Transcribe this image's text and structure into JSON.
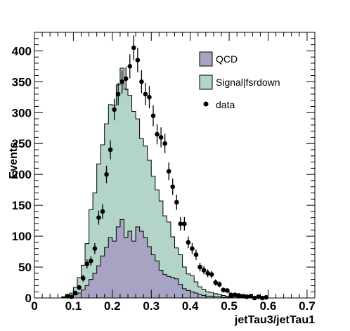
{
  "chart_data": {
    "type": "histogram",
    "title": "",
    "xlabel": "jetTau3/jetTau1",
    "ylabel": "Events",
    "xlim": [
      0,
      0.72
    ],
    "ylim": [
      0,
      430
    ],
    "x_ticks": [
      "0",
      "0.1",
      "0.2",
      "0.3",
      "0.4",
      "0.5",
      "0.6",
      "0.7"
    ],
    "y_ticks": [
      "0",
      "50",
      "100",
      "150",
      "200",
      "250",
      "300",
      "350",
      "400"
    ],
    "grid": false,
    "legend_position": "top-right",
    "bin_width": 0.01,
    "bin_edges_start": 0.07,
    "series": [
      {
        "name": "QCD",
        "kind": "stacked-fill",
        "color": "#a7a3c2",
        "values": [
          1,
          2,
          3,
          5,
          8,
          13,
          20,
          30,
          40,
          52,
          68,
          82,
          98,
          92,
          115,
          127,
          98,
          108,
          92,
          115,
          108,
          98,
          83,
          70,
          60,
          45,
          38,
          35,
          33,
          31,
          22,
          15,
          12,
          10,
          8,
          6,
          4,
          3,
          3,
          2,
          2,
          1,
          1,
          1,
          0,
          0,
          0,
          0,
          0,
          0,
          0,
          0,
          0
        ]
      },
      {
        "name": "Signal|fsrdown",
        "kind": "stacked-fill",
        "color": "#b3d4c9",
        "values": [
          1,
          2,
          5,
          12,
          25,
          40,
          68,
          113,
          130,
          165,
          180,
          200,
          215,
          220,
          230,
          245,
          240,
          220,
          210,
          175,
          150,
          148,
          140,
          127,
          115,
          112,
          95,
          88,
          66,
          50,
          48,
          35,
          27,
          26,
          18,
          12,
          10,
          7,
          6,
          5,
          4,
          3,
          2,
          2,
          2,
          1,
          1,
          1,
          1,
          0,
          0,
          0,
          0
        ]
      },
      {
        "name": "data",
        "kind": "points",
        "color": "#000000",
        "x": [
          0.085,
          0.095,
          0.105,
          0.115,
          0.125,
          0.135,
          0.145,
          0.155,
          0.165,
          0.175,
          0.185,
          0.195,
          0.205,
          0.215,
          0.225,
          0.235,
          0.245,
          0.255,
          0.265,
          0.275,
          0.285,
          0.295,
          0.305,
          0.315,
          0.325,
          0.335,
          0.345,
          0.355,
          0.365,
          0.375,
          0.385,
          0.395,
          0.405,
          0.415,
          0.425,
          0.435,
          0.445,
          0.455,
          0.465,
          0.475,
          0.485,
          0.495,
          0.505,
          0.515,
          0.525,
          0.535,
          0.545,
          0.555,
          0.565,
          0.575,
          0.585,
          0.595
        ],
        "y": [
          3,
          2,
          8,
          17,
          32,
          55,
          60,
          80,
          130,
          140,
          200,
          240,
          305,
          330,
          350,
          355,
          375,
          405,
          385,
          350,
          330,
          325,
          295,
          265,
          260,
          250,
          205,
          180,
          155,
          120,
          120,
          90,
          80,
          70,
          50,
          45,
          40,
          38,
          25,
          22,
          13,
          12,
          5,
          5,
          4,
          3,
          2,
          3,
          0,
          2,
          0,
          1
        ]
      }
    ]
  }
}
